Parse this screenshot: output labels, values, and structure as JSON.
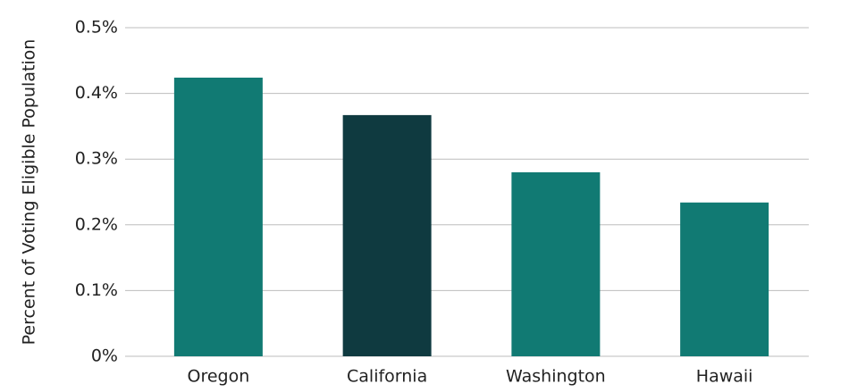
{
  "chart_data": {
    "type": "bar",
    "y_label": "Percent of Voting Eligible Population",
    "categories": [
      "Oregon",
      "California",
      "Washington",
      "Hawaii"
    ],
    "values": [
      0.424,
      0.367,
      0.28,
      0.234
    ],
    "colors": [
      "#117a73",
      "#0f3a40",
      "#117a73",
      "#117a73"
    ],
    "ylim": [
      0,
      0.5
    ],
    "yticks": [
      {
        "value": 0,
        "label": "0%"
      },
      {
        "value": 0.1,
        "label": "0.1%"
      },
      {
        "value": 0.2,
        "label": "0.2%"
      },
      {
        "value": 0.3,
        "label": "0.3%"
      },
      {
        "value": 0.4,
        "label": "0.4%"
      },
      {
        "value": 0.5,
        "label": "0.5%"
      }
    ],
    "grid": true
  }
}
